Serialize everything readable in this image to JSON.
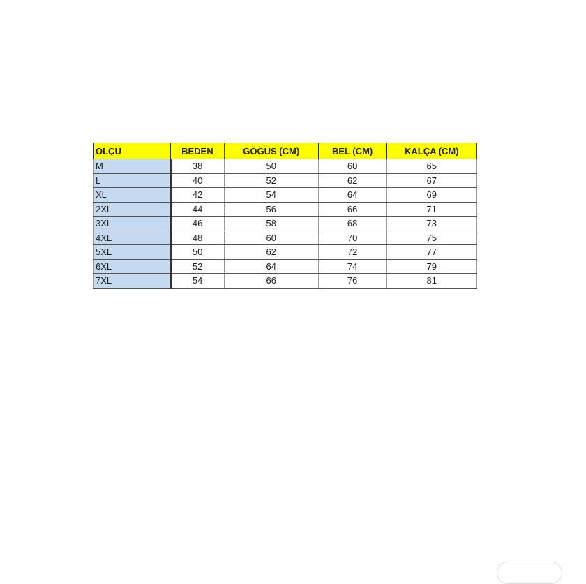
{
  "table": {
    "headers": [
      "ÖLÇÜ",
      "BEDEN",
      "GÖĞÜS (CM)",
      "BEL (CM)",
      "KALÇA (CM)"
    ],
    "rows": [
      [
        "M",
        "38",
        "50",
        "60",
        "65"
      ],
      [
        "L",
        "40",
        "52",
        "62",
        "67"
      ],
      [
        "XL",
        "42",
        "54",
        "64",
        "69"
      ],
      [
        "2XL",
        "44",
        "56",
        "66",
        "71"
      ],
      [
        "3XL",
        "46",
        "58",
        "68",
        "73"
      ],
      [
        "4XL",
        "48",
        "60",
        "70",
        "75"
      ],
      [
        "5XL",
        "50",
        "62",
        "72",
        "77"
      ],
      [
        "6XL",
        "52",
        "64",
        "74",
        "79"
      ],
      [
        "7XL",
        "54",
        "66",
        "76",
        "81"
      ]
    ]
  },
  "colors": {
    "header": "#ffff00",
    "size_column": "#c5d9f1"
  }
}
